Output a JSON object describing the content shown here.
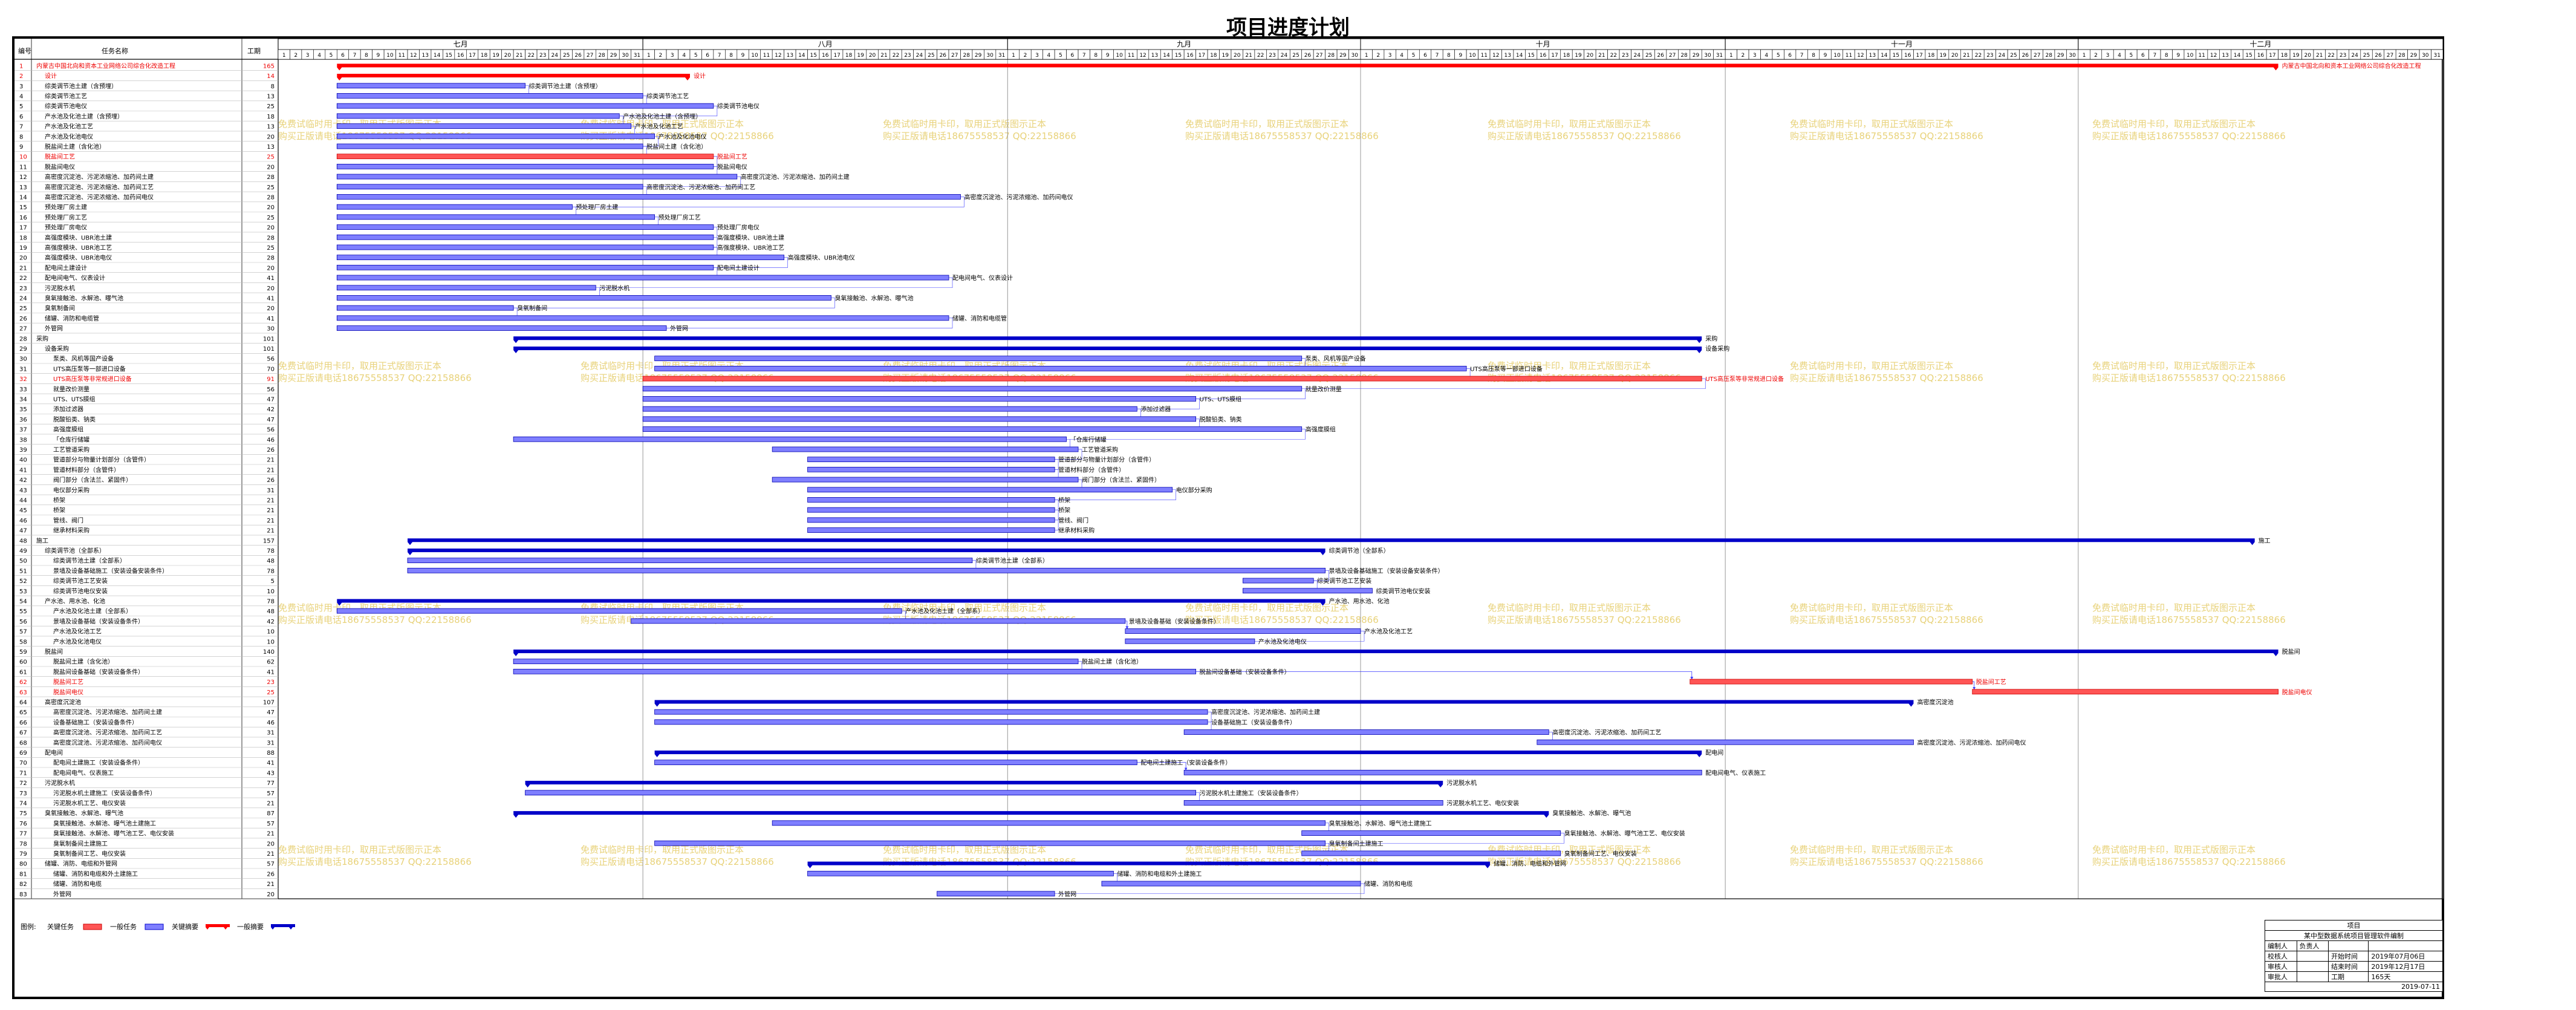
{
  "page": {
    "title": "项目进度计划"
  },
  "header": {
    "col_id": "编号",
    "col_name": "任务名称",
    "col_dur": "工期"
  },
  "months": [
    "七月",
    "八月",
    "九月",
    "十月",
    "十一月",
    "十二月"
  ],
  "month_days": [
    31,
    31,
    30,
    31,
    30,
    31
  ],
  "legend": {
    "label": "图例:",
    "items": [
      "关键任务",
      "一般任务",
      "关键摘要",
      "一般摘要"
    ]
  },
  "watermark": {
    "line1": "免费试临时用卡印，取用正式版图示正本",
    "line2": "购买正版请电话18675558537 QQ:22158866"
  },
  "title_block": {
    "heading": "项目",
    "project": "某中型数据系统项目管理软件编制",
    "rows": [
      [
        "编制人",
        "负责人",
        "",
        ""
      ],
      [
        "校核人",
        "",
        "开始时间",
        "2019年07月06日"
      ],
      [
        "审核人",
        "",
        "结束时间",
        "2019年12月17日"
      ],
      [
        "审批人",
        "",
        "工期",
        "165天"
      ]
    ],
    "date": "2019-07-11"
  },
  "colors": {
    "normal": "#7f7fff",
    "critical": "#ff5555",
    "summary": "#0000c8",
    "critical_summary": "#ff0000",
    "link": "#3a3aff"
  },
  "chart_data": {
    "type": "gantt",
    "title": "项目进度计划",
    "x_axis": {
      "start": "2019-07-01",
      "end": "2019-12-31",
      "months": [
        "七月",
        "八月",
        "九月",
        "十月",
        "十一月",
        "十二月"
      ]
    },
    "tasks": [
      {
        "id": 1,
        "name": "内蒙古中国北向和资本工业网络公司综合化改造工程",
        "dur": 165,
        "type": "crit_summary",
        "level": 0,
        "start": "2019-07-06",
        "end": "2019-12-17"
      },
      {
        "id": 2,
        "name": "设计",
        "dur": 14,
        "type": "crit_summary",
        "level": 1,
        "start": "2019-07-06",
        "end": "2019-08-04"
      },
      {
        "id": 3,
        "name": "综类调节池土建（含预埋）",
        "dur": 8,
        "type": "task",
        "level": 1,
        "start": "2019-07-06",
        "end": "2019-07-21"
      },
      {
        "id": 4,
        "name": "综类调节池工艺",
        "dur": 13,
        "type": "task",
        "level": 1,
        "start": "2019-07-06",
        "end": "2019-07-31"
      },
      {
        "id": 5,
        "name": "综类调节池电仪",
        "dur": 25,
        "type": "task",
        "level": 1,
        "start": "2019-07-06",
        "end": "2019-08-06"
      },
      {
        "id": 6,
        "name": "产水池及化池土建（含预埋）",
        "dur": 18,
        "type": "task",
        "level": 1,
        "start": "2019-07-06",
        "end": "2019-07-29"
      },
      {
        "id": 7,
        "name": "产水池及化池工艺",
        "dur": 13,
        "type": "task",
        "level": 1,
        "start": "2019-07-06",
        "end": "2019-07-30"
      },
      {
        "id": 8,
        "name": "产水池及化池电仪",
        "dur": 20,
        "type": "task",
        "level": 1,
        "start": "2019-07-06",
        "end": "2019-08-01"
      },
      {
        "id": 9,
        "name": "脱盐间土建（含化池）",
        "dur": 13,
        "type": "task",
        "level": 1,
        "start": "2019-07-06",
        "end": "2019-07-31"
      },
      {
        "id": 10,
        "name": "脱盐间工艺",
        "dur": 25,
        "type": "crit",
        "level": 1,
        "start": "2019-07-06",
        "end": "2019-08-06"
      },
      {
        "id": 11,
        "name": "脱盐间电仪",
        "dur": 20,
        "type": "task",
        "level": 1,
        "start": "2019-07-06",
        "end": "2019-08-06"
      },
      {
        "id": 12,
        "name": "高密度沉淀池、污泥浓缩池、加药间土建",
        "dur": 28,
        "type": "task",
        "level": 1,
        "start": "2019-07-06",
        "end": "2019-08-08"
      },
      {
        "id": 13,
        "name": "高密度沉淀池、污泥浓缩池、加药间工艺",
        "dur": 25,
        "type": "task",
        "level": 1,
        "start": "2019-07-06",
        "end": "2019-07-31"
      },
      {
        "id": 14,
        "name": "高密度沉淀池、污泥浓缩池、加药间电仪",
        "dur": 28,
        "type": "task",
        "level": 1,
        "start": "2019-07-06",
        "end": "2019-08-27"
      },
      {
        "id": 15,
        "name": "预处理厂房土建",
        "dur": 20,
        "type": "task",
        "level": 1,
        "start": "2019-07-06",
        "end": "2019-07-25"
      },
      {
        "id": 16,
        "name": "预处理厂房工艺",
        "dur": 25,
        "type": "task",
        "level": 1,
        "start": "2019-07-06",
        "end": "2019-08-01"
      },
      {
        "id": 17,
        "name": "预处理厂房电仪",
        "dur": 20,
        "type": "task",
        "level": 1,
        "start": "2019-07-06",
        "end": "2019-08-06"
      },
      {
        "id": 18,
        "name": "高强度模块、UBR池土建",
        "dur": 28,
        "type": "task",
        "level": 1,
        "start": "2019-07-06",
        "end": "2019-08-06"
      },
      {
        "id": 19,
        "name": "高强度模块、UBR池工艺",
        "dur": 25,
        "type": "task",
        "level": 1,
        "start": "2019-07-06",
        "end": "2019-08-06"
      },
      {
        "id": 20,
        "name": "高强度模块、UBR池电仪",
        "dur": 28,
        "type": "task",
        "level": 1,
        "start": "2019-07-06",
        "end": "2019-08-12"
      },
      {
        "id": 21,
        "name": "配电间土建设计",
        "dur": 20,
        "type": "task",
        "level": 1,
        "start": "2019-07-06",
        "end": "2019-08-06"
      },
      {
        "id": 22,
        "name": "配电间电气、仪表设计",
        "dur": 41,
        "type": "task",
        "level": 1,
        "start": "2019-07-06",
        "end": "2019-08-26"
      },
      {
        "id": 23,
        "name": "污泥脱水机",
        "dur": 20,
        "type": "task",
        "level": 1,
        "start": "2019-07-06",
        "end": "2019-07-27"
      },
      {
        "id": 24,
        "name": "臭氧接触池、水解池、曝气池",
        "dur": 41,
        "type": "task",
        "level": 1,
        "start": "2019-07-06",
        "end": "2019-08-16"
      },
      {
        "id": 25,
        "name": "臭氧制备间",
        "dur": 20,
        "type": "task",
        "level": 1,
        "start": "2019-07-06",
        "end": "2019-07-20"
      },
      {
        "id": 26,
        "name": "储罐、消防和电缆管",
        "dur": 41,
        "type": "task",
        "level": 1,
        "start": "2019-07-06",
        "end": "2019-08-26"
      },
      {
        "id": 27,
        "name": "外管网",
        "dur": 30,
        "type": "task",
        "level": 1,
        "start": "2019-07-06",
        "end": "2019-08-02"
      },
      {
        "id": 28,
        "name": "采购",
        "dur": 101,
        "type": "summary",
        "level": 0,
        "start": "2019-07-21",
        "end": "2019-10-29"
      },
      {
        "id": 29,
        "name": "设备采购",
        "dur": 101,
        "type": "summary",
        "level": 1,
        "start": "2019-07-21",
        "end": "2019-10-29"
      },
      {
        "id": 30,
        "name": "泵类、风机等国产设备",
        "dur": 56,
        "type": "task",
        "level": 2,
        "start": "2019-08-02",
        "end": "2019-09-25"
      },
      {
        "id": 31,
        "name": "UTS高压泵等一部进口设备",
        "dur": 70,
        "type": "task",
        "level": 2,
        "start": "2019-08-02",
        "end": "2019-10-09"
      },
      {
        "id": 32,
        "name": "UTS高压泵等非常规进口设备",
        "dur": 91,
        "type": "crit",
        "level": 2,
        "start": "2019-08-01",
        "end": "2019-10-29"
      },
      {
        "id": 33,
        "name": "就量改价测量",
        "dur": 56,
        "type": "task",
        "level": 2,
        "start": "2019-08-01",
        "end": "2019-09-25"
      },
      {
        "id": 34,
        "name": "UTS、UTS膜组",
        "dur": 47,
        "type": "task",
        "level": 2,
        "start": "2019-08-01",
        "end": "2019-09-16"
      },
      {
        "id": 35,
        "name": "添加过滤器",
        "dur": 42,
        "type": "task",
        "level": 2,
        "start": "2019-08-01",
        "end": "2019-09-11"
      },
      {
        "id": 36,
        "name": "脱酸铅类、钠类",
        "dur": 47,
        "type": "task",
        "level": 2,
        "start": "2019-08-01",
        "end": "2019-09-16"
      },
      {
        "id": 37,
        "name": "高强度膜组",
        "dur": 56,
        "type": "task",
        "level": 2,
        "start": "2019-08-01",
        "end": "2019-09-25"
      },
      {
        "id": 38,
        "name": "「仓库行储罐",
        "dur": 46,
        "type": "task",
        "level": 2,
        "start": "2019-07-21",
        "end": "2019-09-05"
      },
      {
        "id": 39,
        "name": "工艺管道采购",
        "dur": 26,
        "type": "task",
        "level": 2,
        "start": "2019-08-12",
        "end": "2019-09-06"
      },
      {
        "id": 40,
        "name": "管道部分与物量计划部分（含管件）",
        "dur": 21,
        "type": "task",
        "level": 2,
        "start": "2019-08-15",
        "end": "2019-09-04"
      },
      {
        "id": 41,
        "name": "管道材料部分（含管件）",
        "dur": 21,
        "type": "task",
        "level": 2,
        "start": "2019-08-15",
        "end": "2019-09-04"
      },
      {
        "id": 42,
        "name": "阀门部分（含法兰、紧固件）",
        "dur": 26,
        "type": "task",
        "level": 2,
        "start": "2019-08-12",
        "end": "2019-09-06"
      },
      {
        "id": 43,
        "name": "电仪部分采购",
        "dur": 31,
        "type": "task",
        "level": 2,
        "start": "2019-08-15",
        "end": "2019-09-14"
      },
      {
        "id": 44,
        "name": "桥架",
        "dur": 21,
        "type": "task",
        "level": 2,
        "start": "2019-08-15",
        "end": "2019-09-04"
      },
      {
        "id": 45,
        "name": "桥架",
        "dur": 21,
        "type": "task",
        "level": 2,
        "start": "2019-08-15",
        "end": "2019-09-04"
      },
      {
        "id": 46,
        "name": "管线、阀门",
        "dur": 21,
        "type": "task",
        "level": 2,
        "start": "2019-08-15",
        "end": "2019-09-04"
      },
      {
        "id": 47,
        "name": "继承材料采购",
        "dur": 21,
        "type": "task",
        "level": 2,
        "start": "2019-08-15",
        "end": "2019-09-04"
      },
      {
        "id": 48,
        "name": "施工",
        "dur": 157,
        "type": "summary",
        "level": 0,
        "start": "2019-07-12",
        "end": "2019-12-15"
      },
      {
        "id": 49,
        "name": "综类调节池（全部系）",
        "dur": 78,
        "type": "summary",
        "level": 1,
        "start": "2019-07-12",
        "end": "2019-09-27"
      },
      {
        "id": 50,
        "name": "综类调节池土建（全部系）",
        "dur": 48,
        "type": "task",
        "level": 2,
        "start": "2019-07-12",
        "end": "2019-08-28"
      },
      {
        "id": 51,
        "name": "景墙及设备基础施工（安装设备安装条件）",
        "dur": 78,
        "type": "task",
        "level": 2,
        "start": "2019-07-12",
        "end": "2019-09-27"
      },
      {
        "id": 52,
        "name": "综类调节池工艺安装",
        "dur": 5,
        "type": "task",
        "level": 2,
        "start": "2019-09-21",
        "end": "2019-09-26"
      },
      {
        "id": 53,
        "name": "综类调节池电仪安装",
        "dur": 10,
        "type": "task",
        "level": 2,
        "start": "2019-09-21",
        "end": "2019-10-01"
      },
      {
        "id": 54,
        "name": "产水池、用水池、化池",
        "dur": 78,
        "type": "summary",
        "level": 1,
        "start": "2019-07-06",
        "end": "2019-09-27"
      },
      {
        "id": 55,
        "name": "产水池及化池土建（全部系）",
        "dur": 48,
        "type": "task",
        "level": 2,
        "start": "2019-07-06",
        "end": "2019-08-22"
      },
      {
        "id": 56,
        "name": "景墙及设备基础（安装设备条件）",
        "dur": 42,
        "type": "task",
        "level": 2,
        "start": "2019-07-31",
        "end": "2019-09-10"
      },
      {
        "id": 57,
        "name": "产水池及化池工艺",
        "dur": 10,
        "type": "task",
        "level": 2,
        "start": "2019-09-11",
        "end": "2019-09-30"
      },
      {
        "id": 58,
        "name": "产水池及化池电仪",
        "dur": 10,
        "type": "task",
        "level": 2,
        "start": "2019-09-11",
        "end": "2019-09-21"
      },
      {
        "id": 59,
        "name": "脱盐间",
        "dur": 140,
        "type": "summary",
        "level": 1,
        "start": "2019-07-21",
        "end": "2019-12-17"
      },
      {
        "id": 60,
        "name": "脱盐间土建（含化池）",
        "dur": 62,
        "type": "task",
        "level": 2,
        "start": "2019-07-21",
        "end": "2019-09-06"
      },
      {
        "id": 61,
        "name": "脱盐间设备基础（安装设备条件）",
        "dur": 41,
        "type": "task",
        "level": 2,
        "start": "2019-07-21",
        "end": "2019-09-16"
      },
      {
        "id": 62,
        "name": "脱盐间工艺",
        "dur": 23,
        "type": "crit",
        "level": 2,
        "start": "2019-10-29",
        "end": "2019-11-21"
      },
      {
        "id": 63,
        "name": "脱盐间电仪",
        "dur": 25,
        "type": "crit",
        "level": 2,
        "start": "2019-11-22",
        "end": "2019-12-17"
      },
      {
        "id": 64,
        "name": "高密度沉淀池",
        "dur": 107,
        "type": "summary",
        "level": 1,
        "start": "2019-08-02",
        "end": "2019-11-16"
      },
      {
        "id": 65,
        "name": "高密度沉淀池、污泥浓缩池、加药间土建",
        "dur": 47,
        "type": "task",
        "level": 2,
        "start": "2019-08-02",
        "end": "2019-09-17"
      },
      {
        "id": 66,
        "name": "设备基础施工（安装设备条件）",
        "dur": 46,
        "type": "task",
        "level": 2,
        "start": "2019-08-02",
        "end": "2019-09-17"
      },
      {
        "id": 67,
        "name": "高密度沉淀池、污泥浓缩池、加药间工艺",
        "dur": 31,
        "type": "task",
        "level": 2,
        "start": "2019-09-16",
        "end": "2019-10-16"
      },
      {
        "id": 68,
        "name": "高密度沉淀池、污泥浓缩池、加药间电仪",
        "dur": 31,
        "type": "task",
        "level": 2,
        "start": "2019-10-16",
        "end": "2019-11-16"
      },
      {
        "id": 69,
        "name": "配电间",
        "dur": 88,
        "type": "summary",
        "level": 1,
        "start": "2019-08-02",
        "end": "2019-10-29"
      },
      {
        "id": 70,
        "name": "配电间土建施工（安装设备条件）",
        "dur": 41,
        "type": "task",
        "level": 2,
        "start": "2019-08-02",
        "end": "2019-09-11"
      },
      {
        "id": 71,
        "name": "配电间电气、仪表施工",
        "dur": 43,
        "type": "task",
        "level": 2,
        "start": "2019-09-16",
        "end": "2019-10-29"
      },
      {
        "id": 72,
        "name": "污泥脱水机",
        "dur": 77,
        "type": "summary",
        "level": 1,
        "start": "2019-07-22",
        "end": "2019-10-07"
      },
      {
        "id": 73,
        "name": "污泥脱水机土建施工（安装设备条件）",
        "dur": 57,
        "type": "task",
        "level": 2,
        "start": "2019-07-22",
        "end": "2019-09-16"
      },
      {
        "id": 74,
        "name": "污泥脱水机工艺、电仪安装",
        "dur": 21,
        "type": "task",
        "level": 2,
        "start": "2019-09-16",
        "end": "2019-10-07"
      },
      {
        "id": 75,
        "name": "臭氧接触池、水解池、曝气池",
        "dur": 87,
        "type": "summary",
        "level": 1,
        "start": "2019-07-21",
        "end": "2019-10-16"
      },
      {
        "id": 76,
        "name": "臭氧接触池、水解池、曝气池土建施工",
        "dur": 57,
        "type": "task",
        "level": 2,
        "start": "2019-08-12",
        "end": "2019-09-27"
      },
      {
        "id": 77,
        "name": "臭氧接触池、水解池、曝气池工艺、电仪安装",
        "dur": 21,
        "type": "task",
        "level": 2,
        "start": "2019-09-26",
        "end": "2019-10-17"
      },
      {
        "id": 78,
        "name": "臭氧制备间土建施工",
        "dur": 20,
        "type": "task",
        "level": 2,
        "start": "2019-08-02",
        "end": "2019-09-27"
      },
      {
        "id": 79,
        "name": "臭氧制备间工艺、电仪安装",
        "dur": 21,
        "type": "task",
        "level": 2,
        "start": "2019-09-26",
        "end": "2019-10-17"
      },
      {
        "id": 80,
        "name": "储罐、消防、电缆和外管网",
        "dur": 57,
        "type": "summary",
        "level": 1,
        "start": "2019-08-15",
        "end": "2019-10-11"
      },
      {
        "id": 81,
        "name": "储罐、消防和电缆和外土建施工",
        "dur": 26,
        "type": "task",
        "level": 2,
        "start": "2019-08-15",
        "end": "2019-09-09"
      },
      {
        "id": 82,
        "name": "储罐、消防和电缆",
        "dur": 21,
        "type": "task",
        "level": 2,
        "start": "2019-09-09",
        "end": "2019-09-30"
      },
      {
        "id": 83,
        "name": "外管网",
        "dur": 20,
        "type": "task",
        "level": 2,
        "start": "2019-08-26",
        "end": "2019-09-04"
      }
    ]
  }
}
